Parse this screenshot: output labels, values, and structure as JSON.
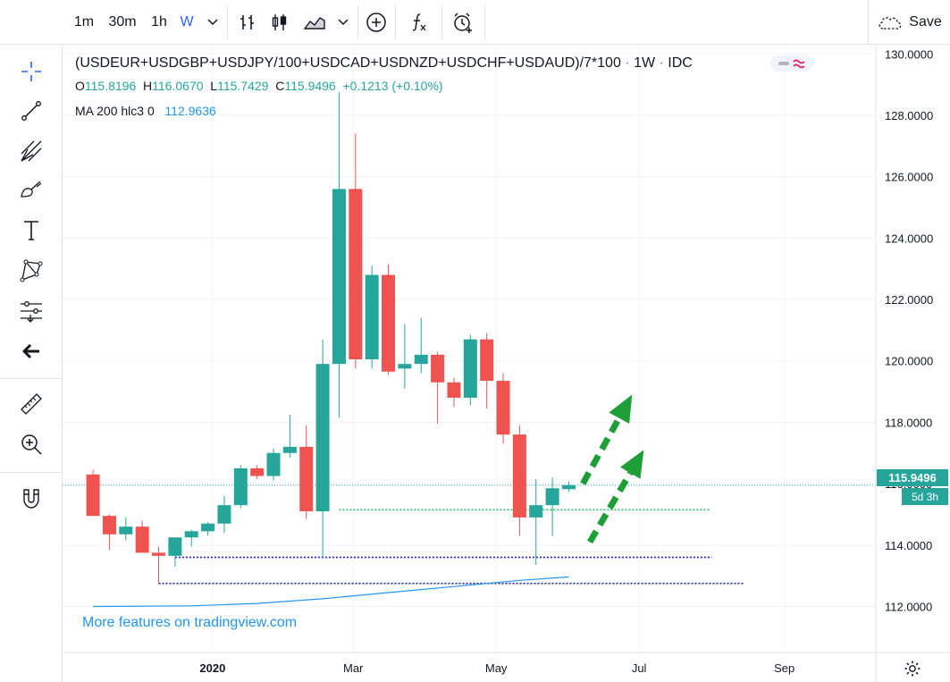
{
  "toolbar": {
    "intervals": [
      {
        "label": "1m",
        "active": false
      },
      {
        "label": "30m",
        "active": false
      },
      {
        "label": "1h",
        "active": false
      },
      {
        "label": "W",
        "active": true
      }
    ],
    "save_label": "Save"
  },
  "left_tools": [
    "crosshair-icon",
    "trend-line-icon",
    "fib-pitchfork-icon",
    "brush-icon",
    "text-icon",
    "pattern-icon",
    "measure-position-icon",
    "back-arrow-icon",
    "ruler-icon",
    "zoom-in-icon",
    "magnet-icon"
  ],
  "legend": {
    "symbol": "(USDEUR+USDGBP+USDJPY/100+USDCAD+USDNZD+USDCHF+USDAUD)/7*100",
    "sep1": " · ",
    "interval": "1W",
    "sep2": " · ",
    "source": "IDC",
    "o_label": "O",
    "o_value": "115.8196",
    "h_label": "H",
    "h_value": "116.0670",
    "l_label": "L",
    "l_value": "115.7429",
    "c_label": "C",
    "c_value": "115.9496",
    "change": "+0.1213 (+0.10%)",
    "ma_label": "MA 200 hlc3 0",
    "ma_value": "112.9636"
  },
  "price_tag": "115.9496",
  "countdown": "5d 3h",
  "watermark": "More features on tradingview.com",
  "colors": {
    "up": "#26a69a",
    "down": "#ef5350",
    "ma": "#2196f3",
    "support": "#1a1aa6",
    "resistance_green": "#22c55e",
    "arrow": "#1e9e37"
  },
  "chart_data": {
    "type": "candlestick",
    "y_ticks": [
      "130.0000",
      "128.0000",
      "126.0000",
      "124.0000",
      "122.0000",
      "120.0000",
      "118.0000",
      "116.0000",
      "114.0000",
      "112.0000"
    ],
    "ylim": [
      110.5,
      130.3
    ],
    "x_ticks": [
      {
        "label": "2020",
        "date": "2020-01-01"
      },
      {
        "label": "Mar",
        "date": "2020-03-01"
      },
      {
        "label": "May",
        "date": "2020-05-01"
      },
      {
        "label": "Jul",
        "date": "2020-07-01"
      },
      {
        "label": "Sep",
        "date": "2020-09-01"
      }
    ],
    "candles": [
      {
        "date": "2019-11-11",
        "o": 116.3,
        "h": 116.45,
        "l": 115.0,
        "c": 114.95
      },
      {
        "date": "2019-11-18",
        "o": 114.95,
        "h": 115.0,
        "l": 113.85,
        "c": 114.35
      },
      {
        "date": "2019-11-25",
        "o": 114.35,
        "h": 114.9,
        "l": 114.15,
        "c": 114.6
      },
      {
        "date": "2019-12-02",
        "o": 114.6,
        "h": 114.8,
        "l": 113.75,
        "c": 113.75
      },
      {
        "date": "2019-12-09",
        "o": 113.75,
        "h": 113.95,
        "l": 112.75,
        "c": 113.65
      },
      {
        "date": "2019-12-16",
        "o": 113.65,
        "h": 114.25,
        "l": 113.3,
        "c": 114.25
      },
      {
        "date": "2019-12-23",
        "o": 114.25,
        "h": 114.5,
        "l": 113.95,
        "c": 114.45
      },
      {
        "date": "2019-12-30",
        "o": 114.45,
        "h": 114.75,
        "l": 114.3,
        "c": 114.7
      },
      {
        "date": "2020-01-06",
        "o": 114.7,
        "h": 115.6,
        "l": 114.4,
        "c": 115.3
      },
      {
        "date": "2020-01-13",
        "o": 115.3,
        "h": 116.6,
        "l": 115.2,
        "c": 116.5
      },
      {
        "date": "2020-01-20",
        "o": 116.5,
        "h": 116.6,
        "l": 116.15,
        "c": 116.25
      },
      {
        "date": "2020-01-27",
        "o": 116.25,
        "h": 117.15,
        "l": 116.1,
        "c": 117.0
      },
      {
        "date": "2020-02-03",
        "o": 117.0,
        "h": 118.25,
        "l": 116.85,
        "c": 117.2
      },
      {
        "date": "2020-02-10",
        "o": 117.2,
        "h": 117.9,
        "l": 114.85,
        "c": 115.1
      },
      {
        "date": "2020-02-17",
        "o": 115.1,
        "h": 120.7,
        "l": 113.6,
        "c": 119.9
      },
      {
        "date": "2020-02-24",
        "o": 119.9,
        "h": 128.75,
        "l": 118.15,
        "c": 125.6
      },
      {
        "date": "2020-03-02",
        "o": 125.6,
        "h": 127.4,
        "l": 119.75,
        "c": 120.05
      },
      {
        "date": "2020-03-09",
        "o": 120.05,
        "h": 123.1,
        "l": 119.75,
        "c": 122.8
      },
      {
        "date": "2020-03-16",
        "o": 122.8,
        "h": 123.15,
        "l": 119.55,
        "c": 119.65
      },
      {
        "date": "2020-03-23",
        "o": 119.75,
        "h": 121.2,
        "l": 119.1,
        "c": 119.9
      },
      {
        "date": "2020-03-30",
        "o": 119.9,
        "h": 121.4,
        "l": 119.6,
        "c": 120.2
      },
      {
        "date": "2020-04-06",
        "o": 120.2,
        "h": 120.3,
        "l": 117.95,
        "c": 119.3
      },
      {
        "date": "2020-04-13",
        "o": 119.3,
        "h": 119.45,
        "l": 118.5,
        "c": 118.8
      },
      {
        "date": "2020-04-20",
        "o": 118.8,
        "h": 120.85,
        "l": 118.55,
        "c": 120.7
      },
      {
        "date": "2020-04-27",
        "o": 120.7,
        "h": 120.9,
        "l": 118.45,
        "c": 119.35
      },
      {
        "date": "2020-05-04",
        "o": 119.35,
        "h": 119.6,
        "l": 117.3,
        "c": 117.6
      },
      {
        "date": "2020-05-11",
        "o": 117.6,
        "h": 117.9,
        "l": 114.3,
        "c": 114.9
      },
      {
        "date": "2020-05-18",
        "o": 114.9,
        "h": 116.15,
        "l": 113.35,
        "c": 115.3
      },
      {
        "date": "2020-05-25",
        "o": 115.3,
        "h": 116.2,
        "l": 114.3,
        "c": 115.85
      },
      {
        "date": "2020-06-01",
        "o": 115.82,
        "h": 116.07,
        "l": 115.74,
        "c": 115.95
      }
    ],
    "ma": [
      {
        "date": "2019-11-11",
        "v": 112.0
      },
      {
        "date": "2019-12-23",
        "v": 112.02
      },
      {
        "date": "2020-01-20",
        "v": 112.1
      },
      {
        "date": "2020-02-17",
        "v": 112.25
      },
      {
        "date": "2020-03-16",
        "v": 112.45
      },
      {
        "date": "2020-04-13",
        "v": 112.65
      },
      {
        "date": "2020-05-11",
        "v": 112.85
      },
      {
        "date": "2020-06-01",
        "v": 112.96
      }
    ],
    "horizontal_lines": [
      {
        "price": 115.15,
        "from": "2020-02-24",
        "to": "2020-07-31",
        "style": "dotted",
        "color": "resistance_green"
      },
      {
        "price": 113.6,
        "from": "2019-12-16",
        "to": "2020-08-01",
        "style": "dotted",
        "color": "support"
      },
      {
        "price": 112.75,
        "from": "2019-12-09",
        "to": "2020-08-15",
        "style": "dotted",
        "color": "support"
      }
    ],
    "arrows": [
      {
        "from_date": "2020-06-07",
        "from_price": 116.0,
        "to_date": "2020-06-28",
        "to_price": 118.9
      },
      {
        "from_date": "2020-06-10",
        "from_price": 114.1,
        "to_date": "2020-07-03",
        "to_price": 117.1
      }
    ],
    "last_price": 115.9496
  }
}
